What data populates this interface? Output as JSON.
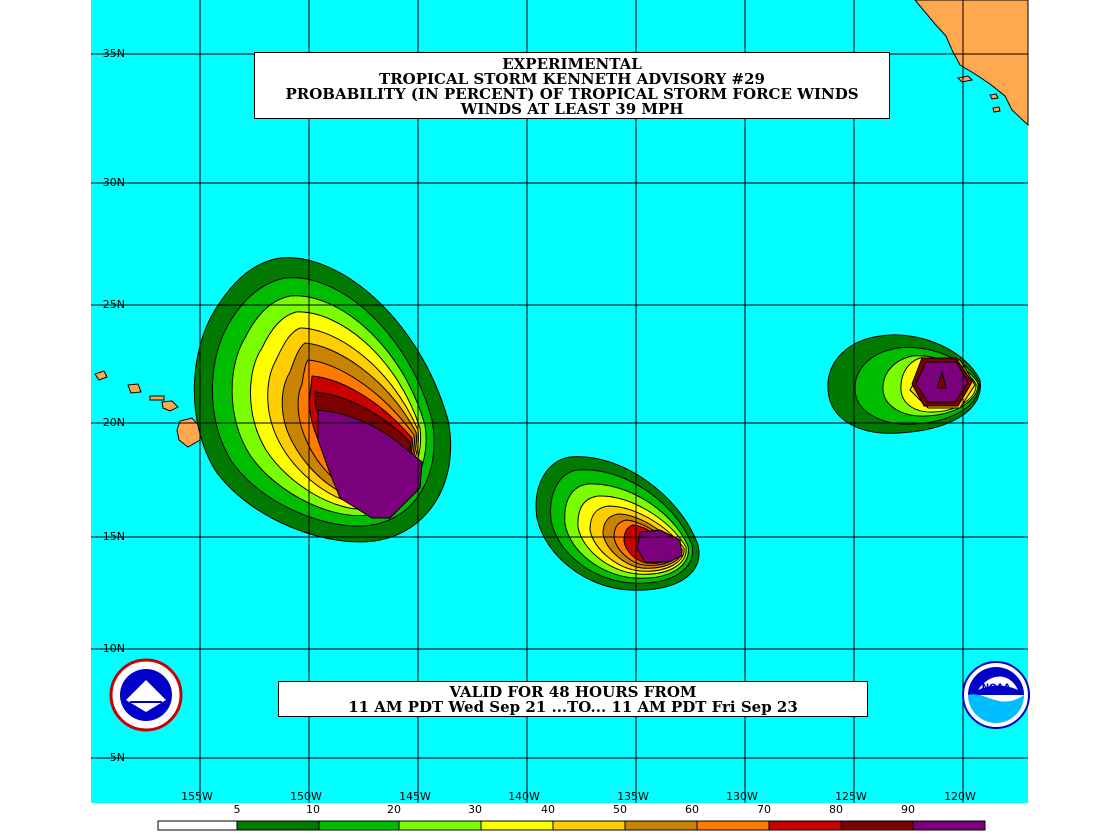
{
  "title": {
    "line1": "EXPERIMENTAL",
    "line2": "TROPICAL STORM KENNETH ADVISORY #29",
    "line3": "PROBABILITY (IN PERCENT) OF TROPICAL STORM FORCE WINDS",
    "line4": "WINDS AT LEAST 39 MPH"
  },
  "valid": {
    "line1": "VALID FOR 48 HOURS FROM",
    "line2": "11 AM PDT Wed Sep 21 ...TO... 11 AM PDT Fri Sep 23"
  },
  "lat_labels": [
    "35N",
    "30N",
    "25N",
    "20N",
    "15N",
    "10N",
    "5N"
  ],
  "lon_labels": [
    "155W",
    "150W",
    "145W",
    "140W",
    "135W",
    "130W",
    "125W",
    "120W"
  ],
  "legend": {
    "labels": [
      "5",
      "10",
      "20",
      "30",
      "40",
      "50",
      "60",
      "70",
      "80",
      "90"
    ],
    "colors": [
      "#ffffff",
      "#007b00",
      "#00bd00",
      "#7bff00",
      "#ffff00",
      "#ffce00",
      "#c88400",
      "#ff7b00",
      "#c80000",
      "#7b0000",
      "#7b007b"
    ]
  },
  "colors": {
    "ocean": "#00ffff",
    "land": "#ffa84f",
    "grid": "#000000"
  },
  "logos": {
    "left": "nws-logo",
    "right": "noaa-logo"
  }
}
